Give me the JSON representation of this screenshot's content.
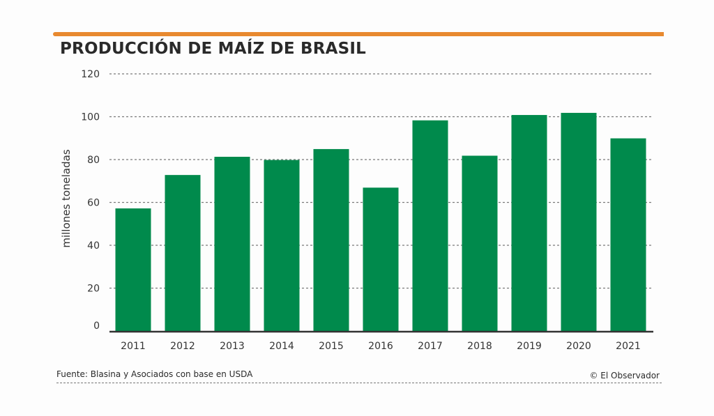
{
  "header": {
    "title": "PRODUCCIÓN DE MAÍZ DE BRASIL",
    "accent_color": "#e8892f"
  },
  "footer": {
    "source": "Fuente: Blasina y Asociados con base en USDA",
    "credit": "© El Observador"
  },
  "chart_data": {
    "type": "bar",
    "title": "PRODUCCIÓN DE MAÍZ DE BRASIL",
    "xlabel": "",
    "ylabel": "millones toneladas",
    "categories": [
      "2011",
      "2012",
      "2013",
      "2014",
      "2015",
      "2016",
      "2017",
      "2018",
      "2019",
      "2020",
      "2021"
    ],
    "values": [
      57.2,
      72.8,
      81.3,
      79.8,
      84.9,
      66.9,
      98.3,
      81.8,
      100.8,
      101.8,
      89.9
    ],
    "ylim": [
      0,
      120
    ],
    "yticks": [
      0,
      20,
      40,
      60,
      80,
      100,
      120
    ],
    "grid": true,
    "grid_style": "dashed",
    "legend": "none",
    "bar_color": "#008a4c"
  }
}
